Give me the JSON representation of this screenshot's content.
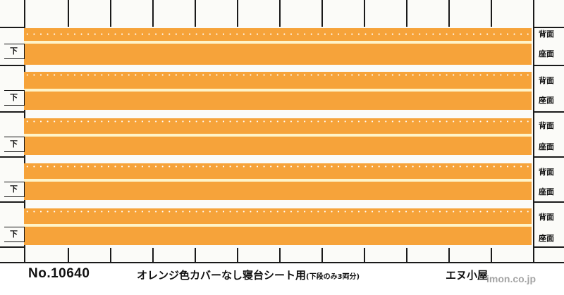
{
  "sets": [
    {
      "top_label": "背面",
      "bottom_label": "座面",
      "left_label": "下"
    },
    {
      "top_label": "背面",
      "bottom_label": "座面",
      "left_label": "下"
    },
    {
      "top_label": "背面",
      "bottom_label": "座面",
      "left_label": "下"
    },
    {
      "top_label": "背面",
      "bottom_label": "座面",
      "left_label": "下"
    },
    {
      "top_label": "背面",
      "bottom_label": "座面",
      "left_label": "下"
    }
  ],
  "footer": {
    "product_number": "No.10640",
    "title": "オレンジ色カバーなし寝台シート用",
    "subtitle": "(下段のみ3両分)",
    "brand": "エヌ小屋",
    "watermark": "imon.co.jp"
  },
  "colors": {
    "seat_orange": "#f6a33a",
    "separator_cream": "#fff4c8",
    "grid_black": "#1a1a1a"
  }
}
